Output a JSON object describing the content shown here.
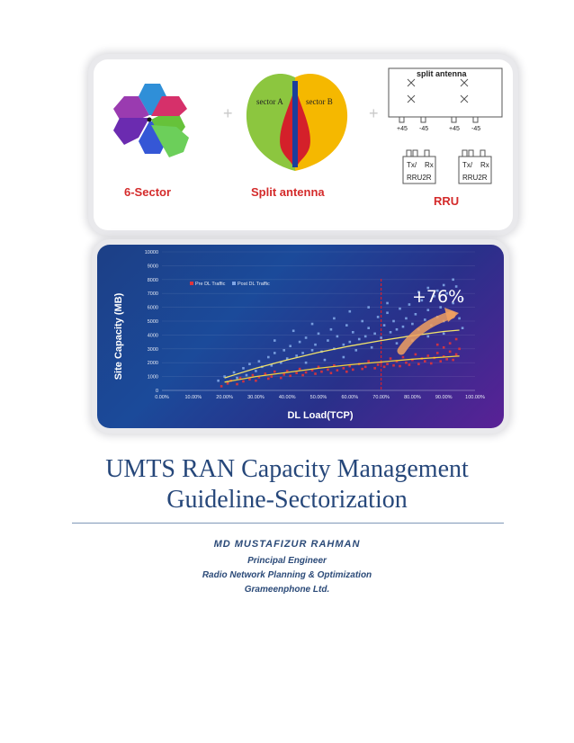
{
  "diagram": {
    "label_6sector": "6-Sector",
    "label_split": "Split antenna",
    "label_rru": "RRU",
    "plus": "+",
    "sector_a": "sector A",
    "sector_b": "sector B",
    "split_antenna_title": "split antenna",
    "ports": [
      "+45",
      "-45",
      "+45",
      "-45"
    ],
    "rru_units": [
      {
        "line1": "Tx/",
        "line1b": "Rx",
        "line2": "RRU2R"
      },
      {
        "line1": "Tx/",
        "line1b": "Rx",
        "line2": "RRU2R"
      }
    ]
  },
  "chart_data": {
    "type": "scatter",
    "title": "",
    "xlabel": "DL Load(TCP)",
    "ylabel": "Site Capacity (MB)",
    "xlim": [
      0,
      100
    ],
    "ylim": [
      0,
      10000
    ],
    "x_ticks": [
      "0.00%",
      "10.00%",
      "20.00%",
      "30.00%",
      "40.00%",
      "50.00%",
      "60.00%",
      "70.00%",
      "80.00%",
      "90.00%",
      "100.00%"
    ],
    "y_ticks": [
      "0",
      "1000",
      "2000",
      "3000",
      "4000",
      "5000",
      "6000",
      "7000",
      "8000",
      "9000",
      "10000"
    ],
    "annotation": "+76%",
    "threshold_x": 70,
    "legend_position": "top-left",
    "series": [
      {
        "name": "Pre DL Traffic",
        "color": "#e0333a",
        "trend": [
          [
            20,
            600
          ],
          [
            30,
            1000
          ],
          [
            40,
            1300
          ],
          [
            50,
            1600
          ],
          [
            60,
            1850
          ],
          [
            70,
            2050
          ],
          [
            80,
            2250
          ],
          [
            90,
            2400
          ],
          [
            95,
            2480
          ]
        ],
        "points": [
          [
            19,
            300
          ],
          [
            21,
            500
          ],
          [
            22,
            700
          ],
          [
            24,
            450
          ],
          [
            25,
            900
          ],
          [
            26,
            650
          ],
          [
            28,
            800
          ],
          [
            29,
            1100
          ],
          [
            30,
            700
          ],
          [
            31,
            950
          ],
          [
            33,
            1200
          ],
          [
            34,
            850
          ],
          [
            35,
            1000
          ],
          [
            36,
            1350
          ],
          [
            38,
            900
          ],
          [
            39,
            1150
          ],
          [
            40,
            1400
          ],
          [
            41,
            1050
          ],
          [
            43,
            1250
          ],
          [
            44,
            1550
          ],
          [
            45,
            1100
          ],
          [
            46,
            1300
          ],
          [
            48,
            1450
          ],
          [
            49,
            1200
          ],
          [
            50,
            1700
          ],
          [
            51,
            1350
          ],
          [
            53,
            1500
          ],
          [
            54,
            1250
          ],
          [
            55,
            1800
          ],
          [
            56,
            1450
          ],
          [
            58,
            1600
          ],
          [
            59,
            1350
          ],
          [
            60,
            1750
          ],
          [
            61,
            1500
          ],
          [
            63,
            1900
          ],
          [
            64,
            1550
          ],
          [
            65,
            1700
          ],
          [
            66,
            2100
          ],
          [
            68,
            1600
          ],
          [
            69,
            1850
          ],
          [
            70,
            2000
          ],
          [
            71,
            1700
          ],
          [
            72,
            1900
          ],
          [
            73,
            2300
          ],
          [
            74,
            1800
          ],
          [
            75,
            2100
          ],
          [
            76,
            1750
          ],
          [
            77,
            2400
          ],
          [
            78,
            2000
          ],
          [
            79,
            1850
          ],
          [
            80,
            2200
          ],
          [
            81,
            2600
          ],
          [
            82,
            1900
          ],
          [
            83,
            2300
          ],
          [
            84,
            2100
          ],
          [
            85,
            2500
          ],
          [
            86,
            1950
          ],
          [
            87,
            2350
          ],
          [
            88,
            2700
          ],
          [
            89,
            2100
          ],
          [
            90,
            2450
          ],
          [
            91,
            2250
          ],
          [
            92,
            2800
          ],
          [
            93,
            2200
          ],
          [
            94,
            2600
          ],
          [
            95,
            3000
          ],
          [
            92,
            3400
          ],
          [
            94,
            3700
          ],
          [
            90,
            3100
          ],
          [
            88,
            3300
          ]
        ]
      },
      {
        "name": "Post DL Traffic",
        "color": "#7fa6e6",
        "trend": [
          [
            20,
            900
          ],
          [
            30,
            1600
          ],
          [
            40,
            2200
          ],
          [
            50,
            2750
          ],
          [
            60,
            3200
          ],
          [
            70,
            3600
          ],
          [
            80,
            3950
          ],
          [
            90,
            4250
          ],
          [
            95,
            4350
          ]
        ],
        "points": [
          [
            18,
            700
          ],
          [
            20,
            1000
          ],
          [
            21,
            600
          ],
          [
            23,
            1300
          ],
          [
            24,
            900
          ],
          [
            26,
            1600
          ],
          [
            27,
            1100
          ],
          [
            28,
            1900
          ],
          [
            30,
            1400
          ],
          [
            31,
            2100
          ],
          [
            32,
            1700
          ],
          [
            34,
            2400
          ],
          [
            35,
            1800
          ],
          [
            36,
            2700
          ],
          [
            38,
            2000
          ],
          [
            39,
            2900
          ],
          [
            40,
            2300
          ],
          [
            41,
            3200
          ],
          [
            43,
            2500
          ],
          [
            44,
            3500
          ],
          [
            45,
            2700
          ],
          [
            46,
            3800
          ],
          [
            48,
            2900
          ],
          [
            49,
            3300
          ],
          [
            50,
            4100
          ],
          [
            51,
            2800
          ],
          [
            53,
            3600
          ],
          [
            54,
            4400
          ],
          [
            55,
            3000
          ],
          [
            56,
            3900
          ],
          [
            58,
            3300
          ],
          [
            59,
            4700
          ],
          [
            60,
            3500
          ],
          [
            61,
            4200
          ],
          [
            63,
            3700
          ],
          [
            64,
            5000
          ],
          [
            65,
            3900
          ],
          [
            66,
            4500
          ],
          [
            68,
            4100
          ],
          [
            69,
            5300
          ],
          [
            70,
            3800
          ],
          [
            71,
            4700
          ],
          [
            72,
            5600
          ],
          [
            73,
            4200
          ],
          [
            74,
            5000
          ],
          [
            75,
            4400
          ],
          [
            76,
            5900
          ],
          [
            77,
            4600
          ],
          [
            78,
            5200
          ],
          [
            79,
            6200
          ],
          [
            80,
            4800
          ],
          [
            81,
            5500
          ],
          [
            82,
            4400
          ],
          [
            83,
            6500
          ],
          [
            84,
            5100
          ],
          [
            85,
            5800
          ],
          [
            86,
            4700
          ],
          [
            87,
            6800
          ],
          [
            88,
            5300
          ],
          [
            89,
            6000
          ],
          [
            90,
            5000
          ],
          [
            91,
            7000
          ],
          [
            92,
            5600
          ],
          [
            93,
            6300
          ],
          [
            94,
            7500
          ],
          [
            95,
            5200
          ],
          [
            93,
            8000
          ],
          [
            90,
            7600
          ],
          [
            88,
            7200
          ],
          [
            85,
            7400
          ],
          [
            82,
            7100
          ],
          [
            96,
            6600
          ],
          [
            96,
            4500
          ],
          [
            72,
            6300
          ],
          [
            66,
            6000
          ],
          [
            60,
            5700
          ],
          [
            55,
            5200
          ],
          [
            48,
            4800
          ],
          [
            42,
            4300
          ],
          [
            36,
            3600
          ],
          [
            58,
            2400
          ],
          [
            62,
            2900
          ],
          [
            52,
            2200
          ],
          [
            46,
            2000
          ],
          [
            67,
            3100
          ],
          [
            75,
            3400
          ],
          [
            80,
            3600
          ],
          [
            85,
            3900
          ],
          [
            90,
            4100
          ]
        ]
      }
    ]
  },
  "document": {
    "title_line1": "UMTS RAN Capacity Management",
    "title_line2": "Guideline-Sectorization",
    "author": "MD MUSTAFIZUR  RAHMAN",
    "role": "Principal Engineer",
    "department": "Radio Network Planning & Optimization",
    "company": "Grameenphone Ltd."
  }
}
